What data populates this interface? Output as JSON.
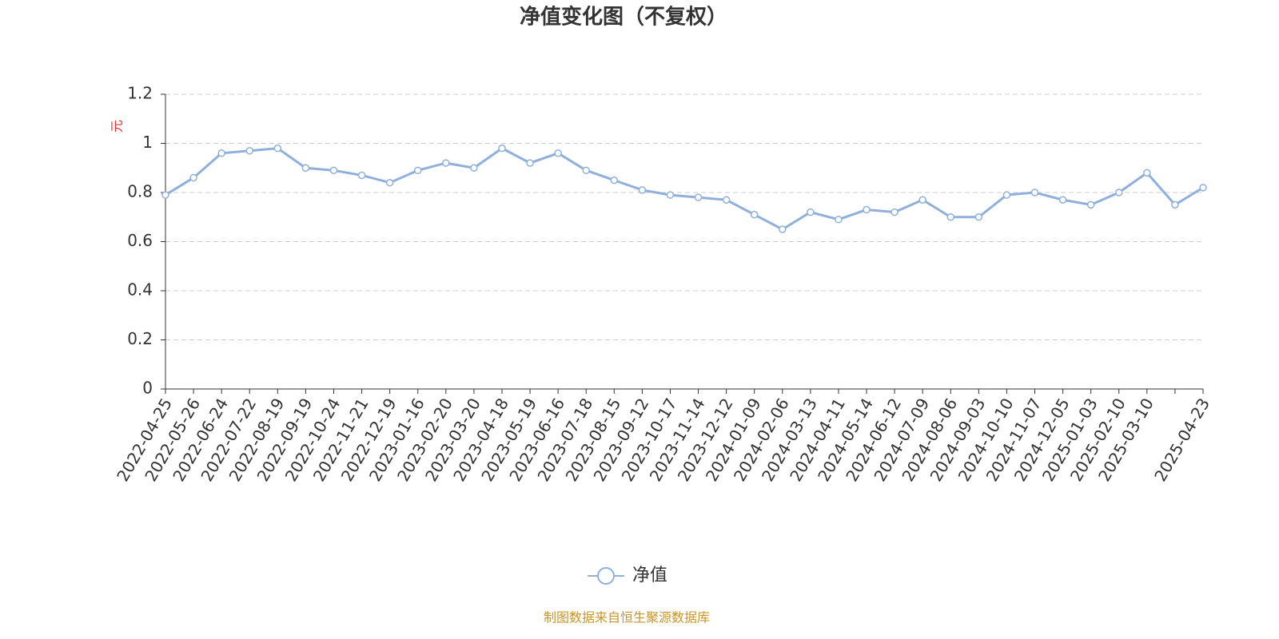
{
  "chart_data": {
    "type": "line",
    "title": "净值变化图（不复权）",
    "y_label": "元",
    "categories": [
      "2022-04-25",
      "2022-05-26",
      "2022-06-24",
      "2022-07-22",
      "2022-08-19",
      "2022-09-19",
      "2022-10-24",
      "2022-11-21",
      "2022-12-19",
      "2023-01-16",
      "2023-02-20",
      "2023-03-20",
      "2023-04-18",
      "2023-05-19",
      "2023-06-16",
      "2023-07-18",
      "2023-08-15",
      "2023-09-12",
      "2023-10-17",
      "2023-11-14",
      "2023-12-12",
      "2024-01-09",
      "2024-02-06",
      "2024-03-13",
      "2024-04-11",
      "2024-05-14",
      "2024-06-12",
      "2024-07-09",
      "2024-08-06",
      "2024-09-03",
      "2024-10-10",
      "2024-11-07",
      "2024-12-05",
      "2025-01-03",
      "2025-02-10",
      "2025-03-10",
      null,
      "2025-04-23"
    ],
    "series": [
      {
        "name": "净值",
        "color": "#8fb0dc",
        "values": [
          0.79,
          0.86,
          0.96,
          0.97,
          0.98,
          0.9,
          0.89,
          0.87,
          0.84,
          0.89,
          0.92,
          0.9,
          0.98,
          0.92,
          0.96,
          0.89,
          0.85,
          0.81,
          0.79,
          0.78,
          0.77,
          0.71,
          0.65,
          0.72,
          0.69,
          0.73,
          0.72,
          0.77,
          0.7,
          0.7,
          0.79,
          0.8,
          0.77,
          0.75,
          0.8,
          0.88,
          0.75,
          0.82
        ]
      }
    ],
    "ylim": [
      0,
      1.2
    ],
    "yticks": [
      0,
      0.2,
      0.4,
      0.6,
      0.8,
      1,
      1.2
    ],
    "grid": true,
    "legend": "bottom",
    "source": "制图数据来自恒生聚源数据库"
  }
}
